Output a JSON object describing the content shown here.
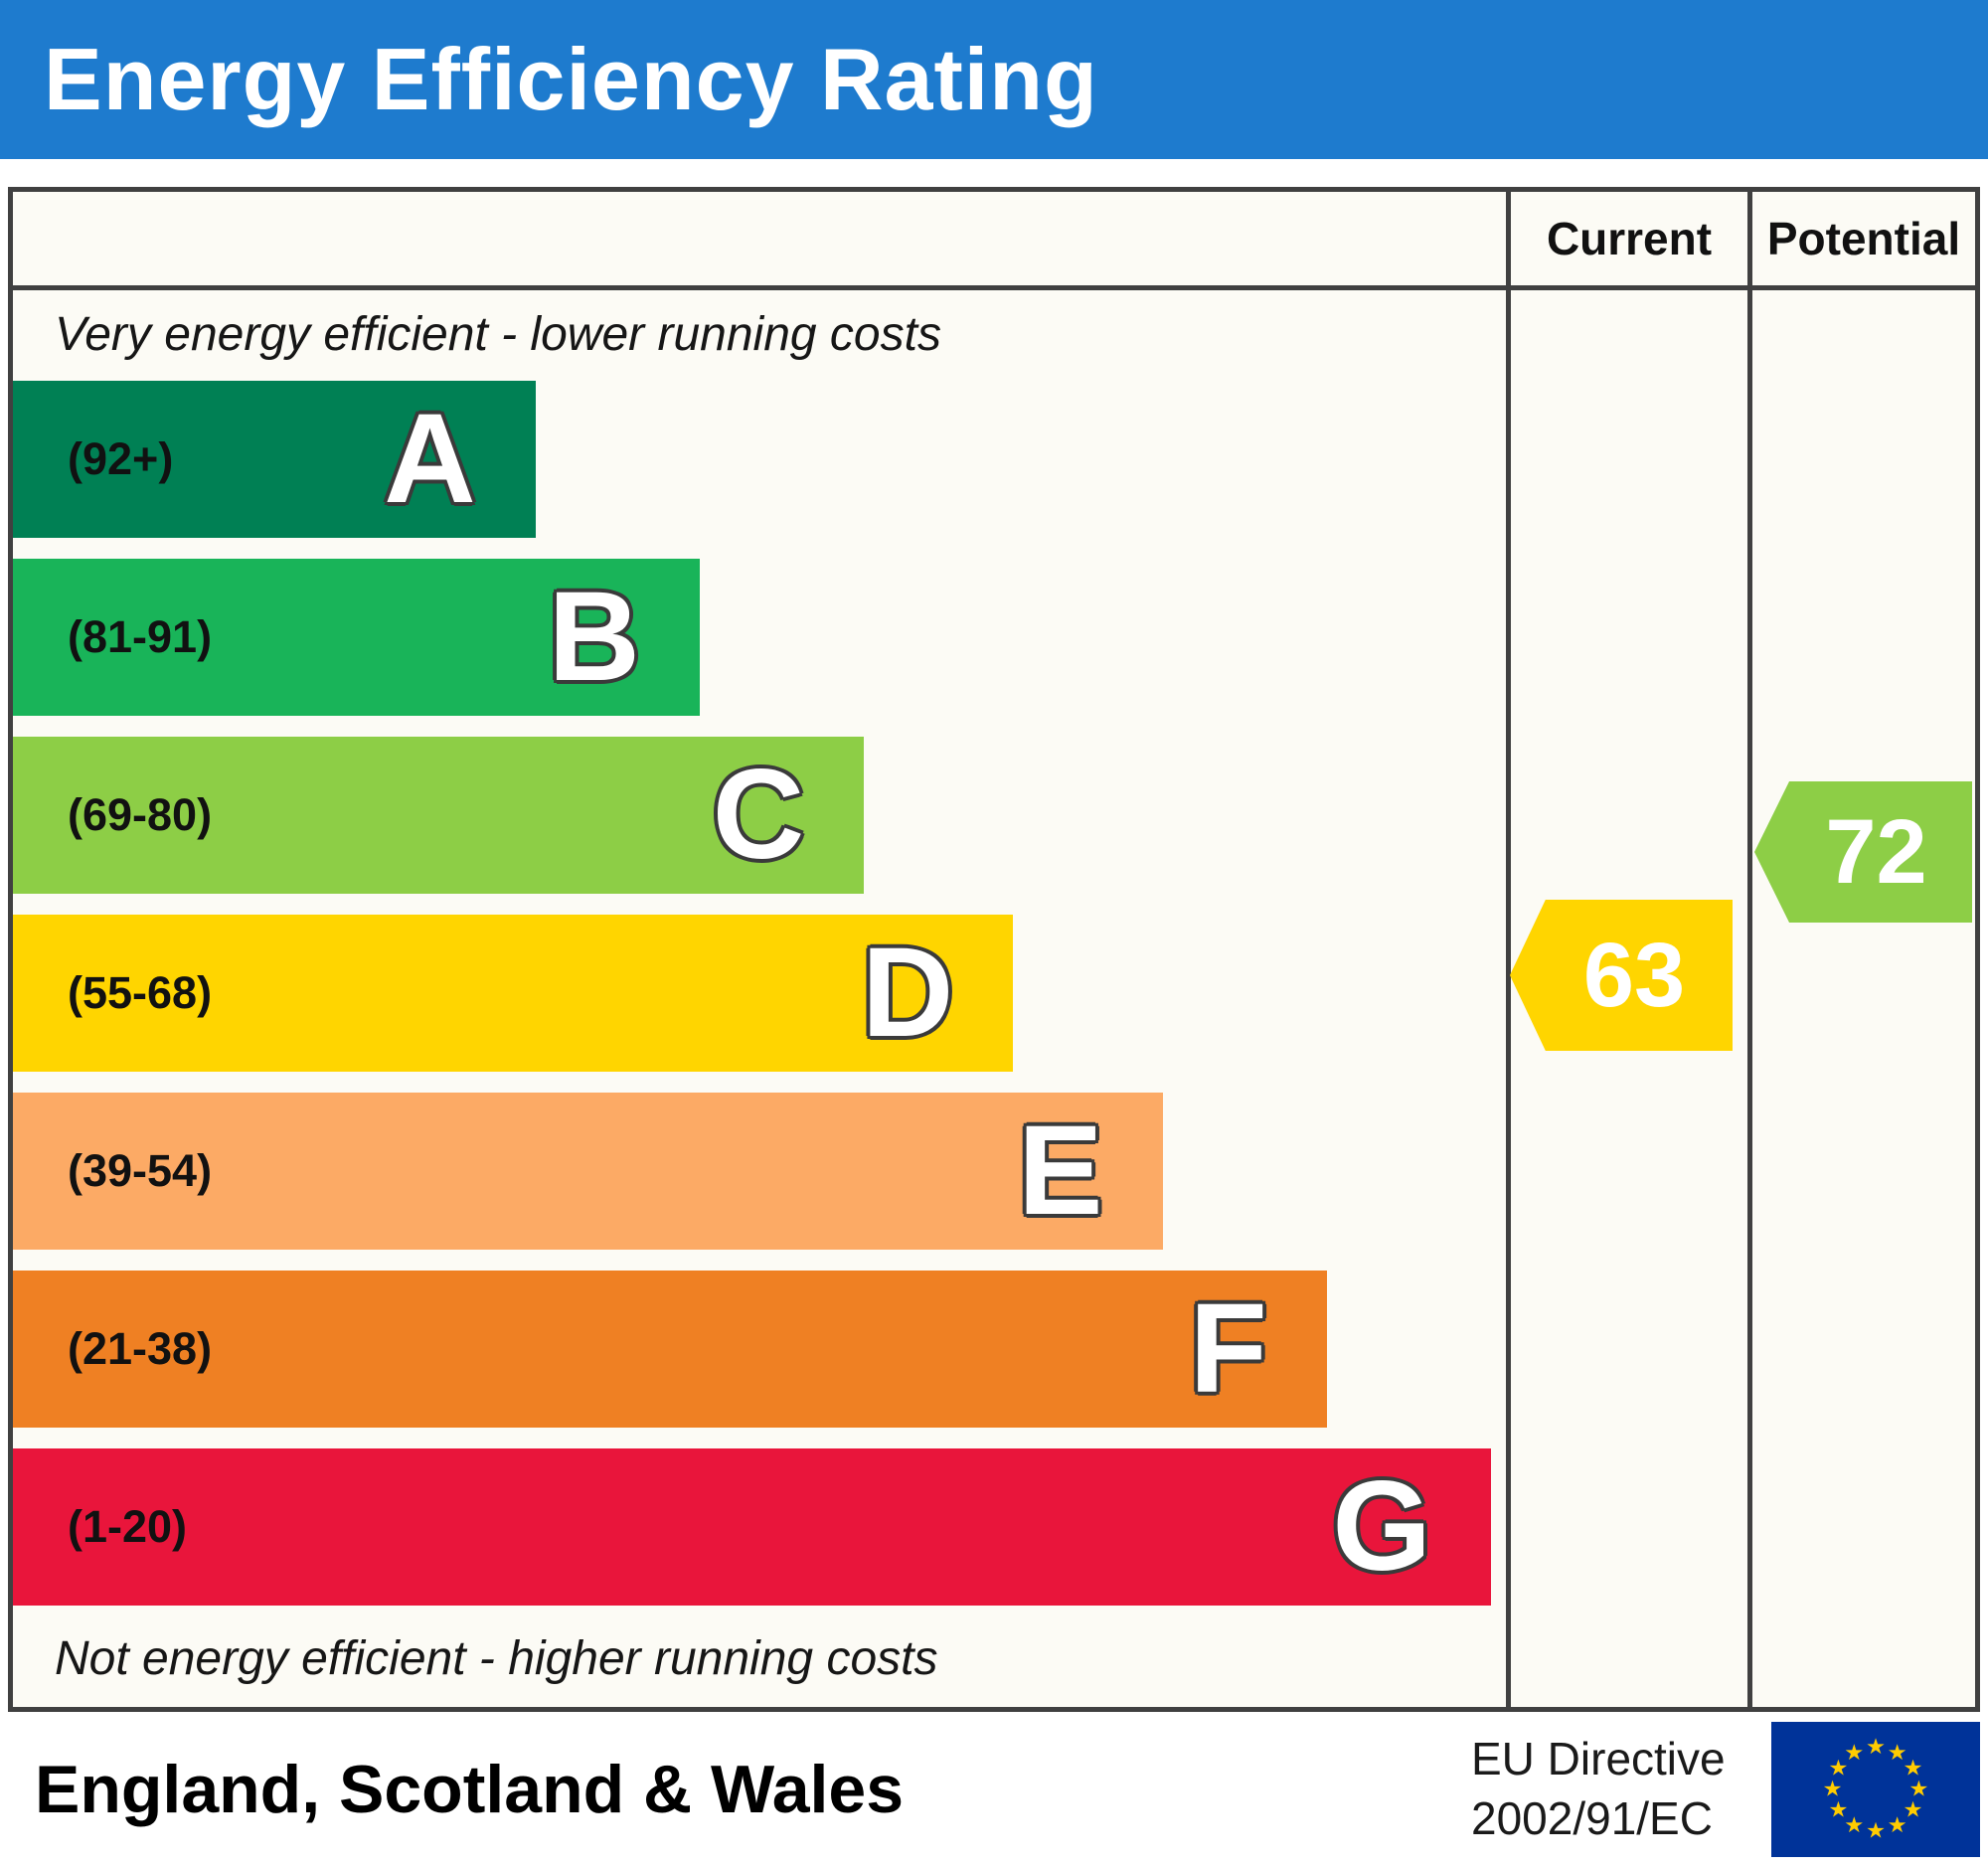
{
  "header": {
    "title": "Energy Efficiency Rating"
  },
  "columns": {
    "current": "Current",
    "potential": "Potential"
  },
  "chart_data": {
    "type": "bar",
    "title": "Energy Efficiency Rating",
    "top_note": "Very energy efficient - lower running costs",
    "bottom_note": "Not energy efficient - higher running costs",
    "bands": [
      {
        "letter": "A",
        "range": "(92+)",
        "min": 92,
        "max": 100,
        "color": "#008054",
        "width_pct": 35
      },
      {
        "letter": "B",
        "range": "(81-91)",
        "min": 81,
        "max": 91,
        "color": "#19b459",
        "width_pct": 46
      },
      {
        "letter": "C",
        "range": "(69-80)",
        "min": 69,
        "max": 80,
        "color": "#8dce46",
        "width_pct": 57
      },
      {
        "letter": "D",
        "range": "(55-68)",
        "min": 55,
        "max": 68,
        "color": "#ffd500",
        "width_pct": 67
      },
      {
        "letter": "E",
        "range": "(39-54)",
        "min": 39,
        "max": 54,
        "color": "#fcaa65",
        "width_pct": 77
      },
      {
        "letter": "F",
        "range": "(21-38)",
        "min": 21,
        "max": 38,
        "color": "#ef8023",
        "width_pct": 88
      },
      {
        "letter": "G",
        "range": "(1-20)",
        "min": 1,
        "max": 20,
        "color": "#e9153b",
        "width_pct": 99
      }
    ],
    "current": {
      "label": "Current",
      "value": 63,
      "band": "D",
      "color": "#ffd500"
    },
    "potential": {
      "label": "Potential",
      "value": 72,
      "band": "C",
      "color": "#8dce46"
    }
  },
  "footer": {
    "region": "England, Scotland & Wales",
    "directive_line1": "EU Directive",
    "directive_line2": "2002/91/EC"
  },
  "colors": {
    "header_bg": "#1e7bce",
    "border": "#404040"
  }
}
